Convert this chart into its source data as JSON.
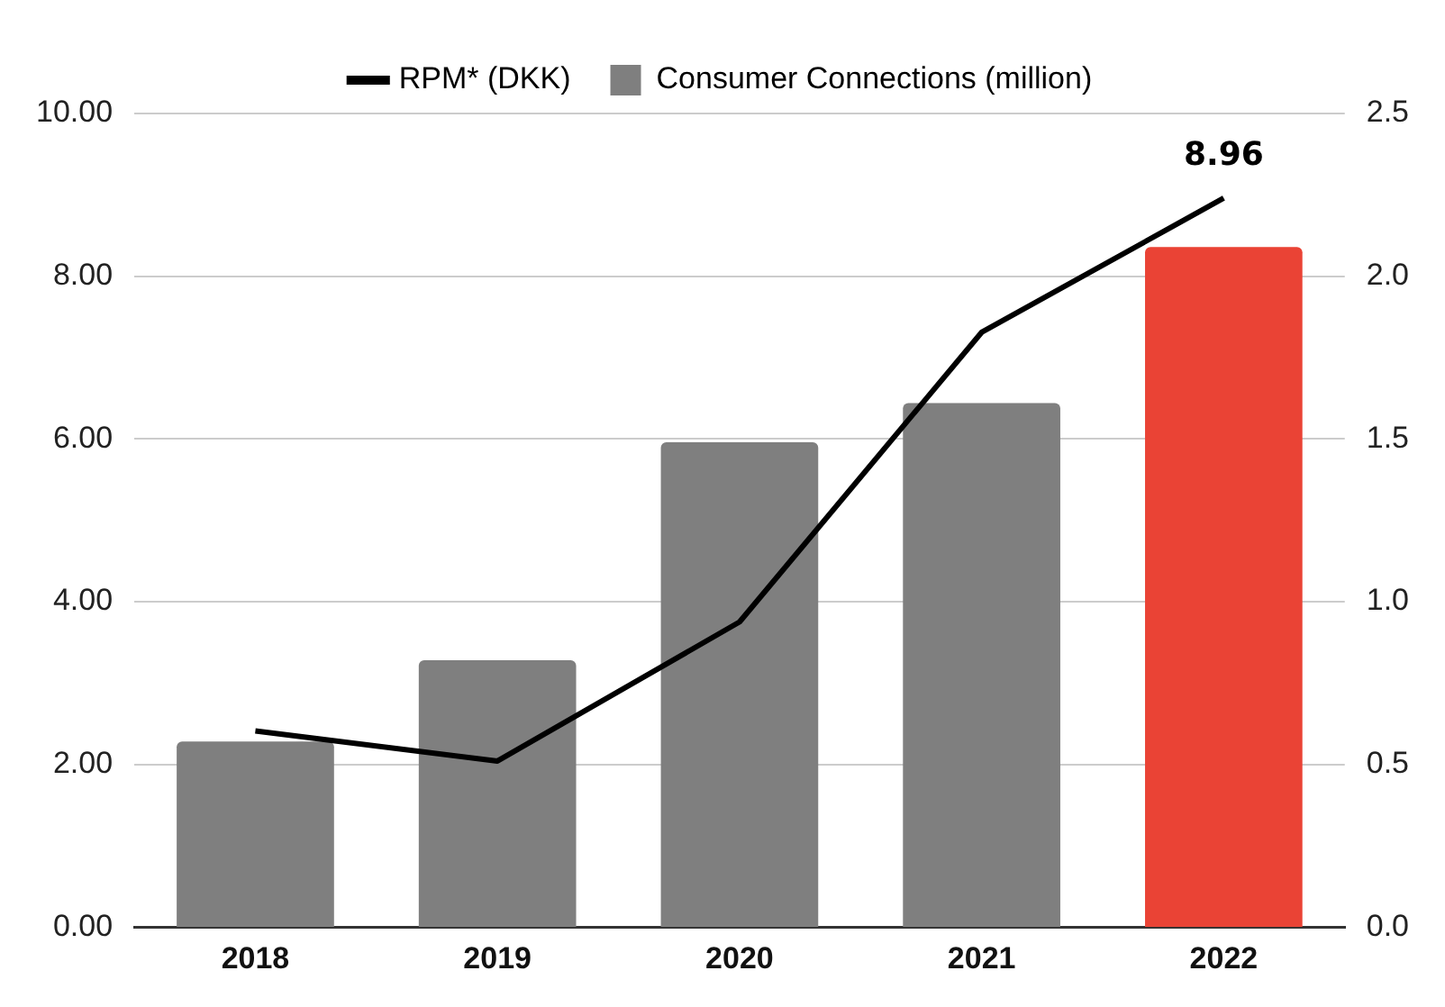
{
  "chart_data": {
    "type": "bar",
    "categories": [
      "2018",
      "2019",
      "2020",
      "2021",
      "2022"
    ],
    "series": [
      {
        "name": "RPM* (DKK)",
        "type": "line",
        "color": "#000000",
        "values": [
          2.41,
          2.04,
          3.75,
          7.31,
          8.96
        ],
        "value_labels": [
          null,
          null,
          null,
          null,
          "8.96"
        ],
        "marker": "none",
        "line_style": "solid"
      },
      {
        "name": "Consumer Connections (million)",
        "axis": "y2",
        "color": "#7f7f7f",
        "colors": [
          "#7f7f7f",
          "#7f7f7f",
          "#7f7f7f",
          "#7f7f7f",
          "#ea4335"
        ],
        "values": [
          0.57,
          0.82,
          1.49,
          1.61,
          2.09
        ]
      }
    ],
    "ylim": [
      0,
      10
    ],
    "yticks": [
      {
        "value": 0,
        "label": "0.00"
      },
      {
        "value": 2,
        "label": "2.00"
      },
      {
        "value": 4,
        "label": "4.00"
      },
      {
        "value": 6,
        "label": "6.00"
      },
      {
        "value": 8,
        "label": "8.00"
      },
      {
        "value": 10,
        "label": "10.00"
      }
    ],
    "y2lim": [
      0,
      2.5
    ],
    "y2ticks": [
      {
        "value": 0,
        "label": "0.0"
      },
      0.5,
      {
        "value": 1,
        "label": "1.0"
      },
      1.5,
      {
        "value": 2,
        "label": "2.0"
      },
      2.5
    ],
    "grid": "y",
    "legend": "top"
  }
}
